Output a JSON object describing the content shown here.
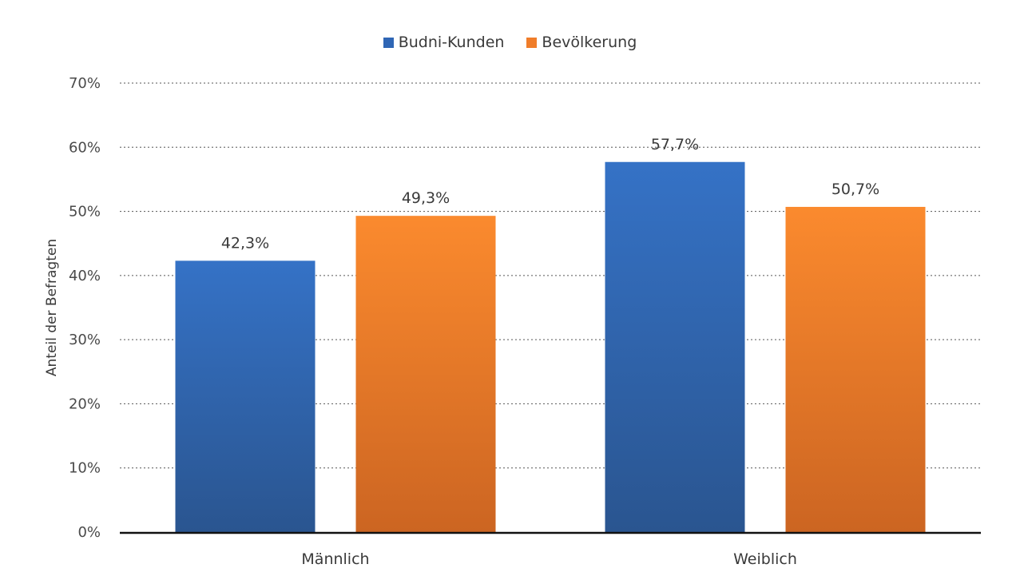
{
  "chart_data": {
    "type": "bar",
    "title": "",
    "xlabel": "",
    "ylabel": "Anteil der Befragten",
    "ylim": [
      0,
      70
    ],
    "yticks": [
      "0%",
      "10%",
      "20%",
      "30%",
      "40%",
      "50%",
      "60%",
      "70%"
    ],
    "ytick_values": [
      0,
      10,
      20,
      30,
      40,
      50,
      60,
      70
    ],
    "categories": [
      "Männlich",
      "Weiblich"
    ],
    "series": [
      {
        "name": "Budni-Kunden",
        "values": [
          42.3,
          57.7
        ],
        "labels": [
          "42,3%",
          "57,7%"
        ],
        "color": "#3572c6",
        "color_dark": "#2a5590"
      },
      {
        "name": "Bevölkerung",
        "values": [
          49.3,
          50.7
        ],
        "labels": [
          "49,3%",
          "50,7%"
        ],
        "color": "#fb8a2e",
        "color_dark": "#cc6522"
      }
    ],
    "grid": true,
    "legend_position": "top-center"
  }
}
